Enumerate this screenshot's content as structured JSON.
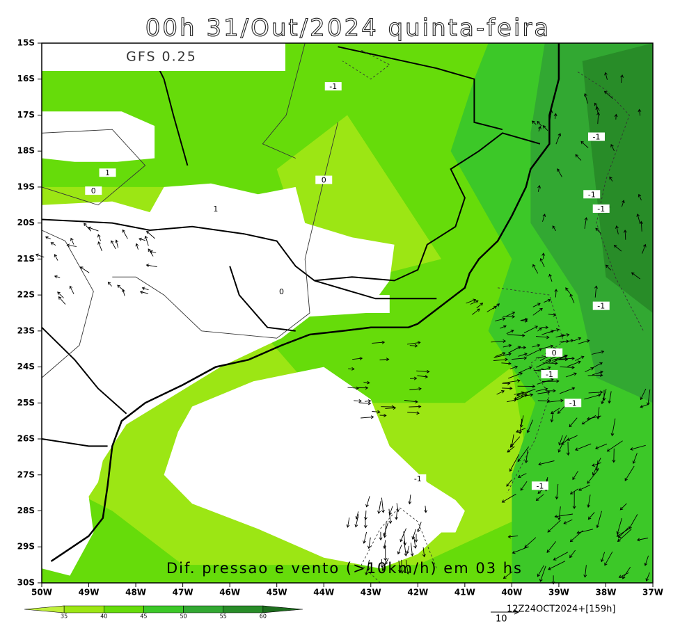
{
  "title": "00h 31/Out/2024 quinta-feira",
  "model": "GFS 0.25",
  "subtitle": "Dif. pressao e vento (>10km/h) em 03 hs",
  "lat_labels": [
    "15S",
    "16S",
    "17S",
    "18S",
    "19S",
    "20S",
    "21S",
    "22S",
    "23S",
    "24S",
    "25S",
    "26S",
    "27S",
    "28S",
    "29S",
    "30S"
  ],
  "lon_labels": [
    "50W",
    "49W",
    "48W",
    "47W",
    "46W",
    "45W",
    "44W",
    "43W",
    "42W",
    "41W",
    "40W",
    "39W",
    "38W",
    "37W"
  ],
  "contour_labels": [
    "-1",
    "0",
    "1",
    "0",
    "1",
    "0",
    "-1",
    "-1",
    "-1",
    "-1",
    "0",
    "-1",
    "-1",
    "-1",
    "-1"
  ],
  "colorbar": {
    "labels": [
      "35",
      "40",
      "45",
      "50",
      "55",
      "60"
    ],
    "colors": [
      "#c0f03c",
      "#9ce614",
      "#66dc0a",
      "#3cc828",
      "#32a832",
      "#288c28",
      "#1e6e1e"
    ]
  },
  "vector_ref": "10",
  "run_info": "12Z24OCT2024+[159h]"
}
